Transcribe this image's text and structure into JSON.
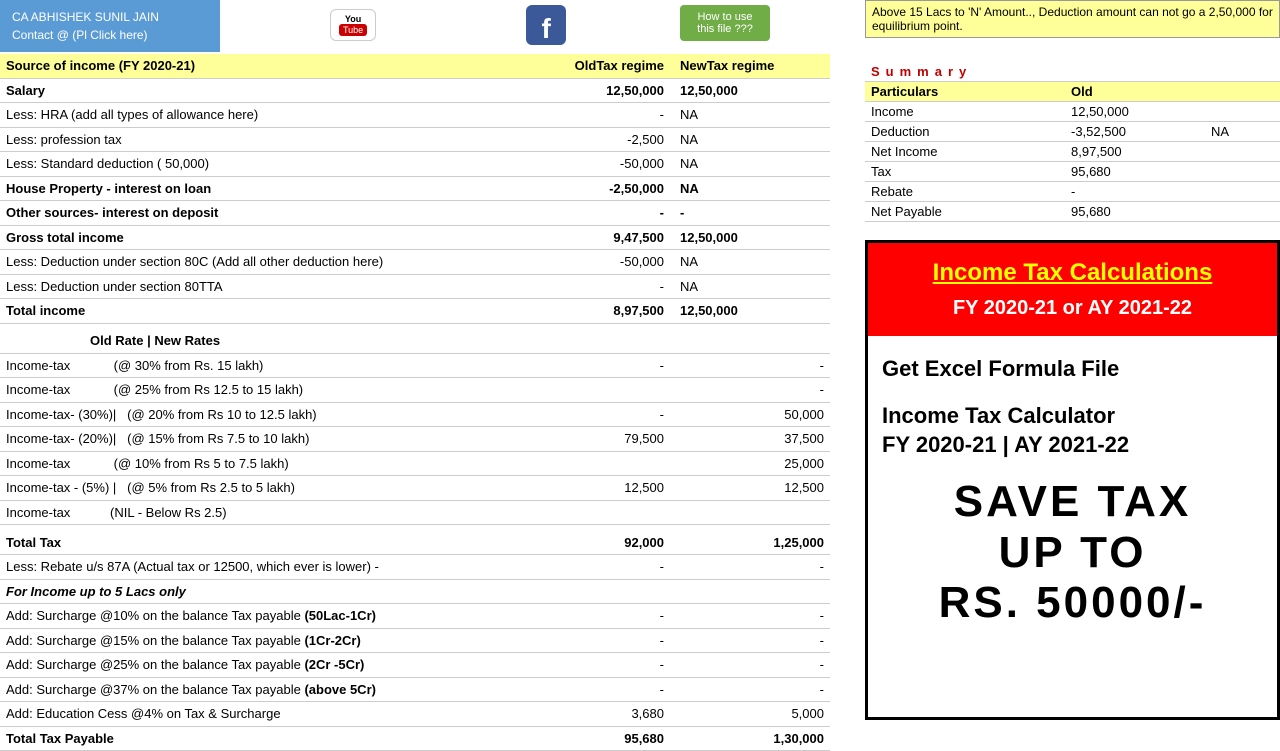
{
  "header": {
    "name": "CA ABHISHEK SUNIL JAIN",
    "contact": "Contact @ (Pl Click here)"
  },
  "howto": "How to use this file ???",
  "note": "Above 15 Lacs to 'N' Amount.., Deduction amount can not go a 2,50,000 for equilibrium point.",
  "cols": {
    "c1": "Source of income (FY 2020-21)",
    "c2": "OldTax regime",
    "c3": "NewTax regime"
  },
  "rows": [
    {
      "label": "Salary",
      "old": "12,50,000",
      "new": "12,50,000",
      "bold": true
    },
    {
      "label": "Less: HRA (add all types of allowance here)",
      "old": "-",
      "new": "NA"
    },
    {
      "label": "Less: profession tax",
      "old": "-2,500",
      "new": "NA"
    },
    {
      "label": "Less: Standard deduction ( 50,000)",
      "old": "-50,000",
      "new": "NA"
    },
    {
      "label": "House Property - interest on loan",
      "old": "-2,50,000",
      "new": "NA",
      "bold": true
    },
    {
      "label": "Other sources- interest on deposit",
      "old": "-",
      "new": "-",
      "bold": true
    },
    {
      "label": "Gross total income",
      "old": "9,47,500",
      "new": "12,50,000",
      "bold": true
    },
    {
      "label": "Less: Deduction under section 80C (Add all other deduction here)",
      "old": "-50,000",
      "new": "NA"
    },
    {
      "label": "Less: Deduction under section 80TTA",
      "old": "-",
      "new": "NA"
    },
    {
      "label": "Total income",
      "old": "8,97,500",
      "new": "12,50,000",
      "bold": true
    }
  ],
  "rateHdr": "Old Rate |  New Rates",
  "rateRows": [
    {
      "label": "Income-tax            (@ 30% from Rs. 15 lakh)",
      "old": "-",
      "new": "-"
    },
    {
      "label": "Income-tax            (@ 25% from Rs 12.5 to 15 lakh)",
      "old": "",
      "new": "-"
    },
    {
      "label": "Income-tax- (30%)|   (@ 20% from Rs 10 to 12.5 lakh)",
      "old": "-",
      "new": "50,000"
    },
    {
      "label": "Income-tax- (20%)|   (@ 15% from Rs 7.5 to 10 lakh)",
      "old": "79,500",
      "new": "37,500"
    },
    {
      "label": "Income-tax            (@ 10% from Rs 5 to 7.5 lakh)",
      "old": "",
      "new": "25,000"
    },
    {
      "label": "Income-tax - (5%) |   (@ 5% from Rs 2.5 to 5 lakh)",
      "old": "12,500",
      "new": "12,500"
    },
    {
      "label": "Income-tax           (NIL - Below Rs 2.5)",
      "old": "",
      "new": ""
    }
  ],
  "totalTax": {
    "label": "Total Tax",
    "old": "92,000",
    "new": "1,25,000"
  },
  "rebate": "Less: Rebate u/s 87A (Actual tax or 12500, which ever is lower) -",
  "rebateNote": "For Income up to 5 Lacs only",
  "surcharge": [
    {
      "pre": "Add: Surcharge @10% on the balance Tax payable ",
      "b": "(50Lac-1Cr)",
      "old": "-",
      "new": "-"
    },
    {
      "pre": "Add: Surcharge @15% on the balance Tax payable ",
      "b": "(1Cr-2Cr)",
      "old": "-",
      "new": "-"
    },
    {
      "pre": "Add: Surcharge @25% on the balance Tax payable ",
      "b": "(2Cr -5Cr)",
      "old": "-",
      "new": "-"
    },
    {
      "pre": "Add: Surcharge @37% on the balance Tax payable ",
      "b": "(above 5Cr)",
      "old": "-",
      "new": "-"
    }
  ],
  "cess": {
    "label": "Add: Education Cess @4% on Tax & Surcharge",
    "old": "3,680",
    "new": "5,000"
  },
  "totalPayable": {
    "label": "Total Tax Payable",
    "old": "95,680",
    "new": "1,30,000"
  },
  "summary": {
    "title": "Summary",
    "hdr1": "Particulars",
    "hdr2": "Old",
    "rows": [
      {
        "k": "Income",
        "v": "12,50,000"
      },
      {
        "k": "Deduction",
        "v": "-3,52,500",
        "extra": "NA"
      },
      {
        "k": "Net Income",
        "v": "8,97,500"
      },
      {
        "k": "Tax",
        "v": "95,680"
      },
      {
        "k": "Rebate",
        "v": "-"
      },
      {
        "k": "Net Payable",
        "v": "95,680",
        "bold": true
      }
    ]
  },
  "promo": {
    "title": "Income Tax Calculations",
    "sub": "FY 2020-21 or AY 2021-22",
    "t1": "Get Excel Formula File",
    "t2a": "Income Tax Calculator",
    "t2b": "FY 2020-21 | AY 2021-22",
    "big1": "SAVE TAX",
    "big2": "UP TO",
    "big3": "RS. 50000/-"
  }
}
